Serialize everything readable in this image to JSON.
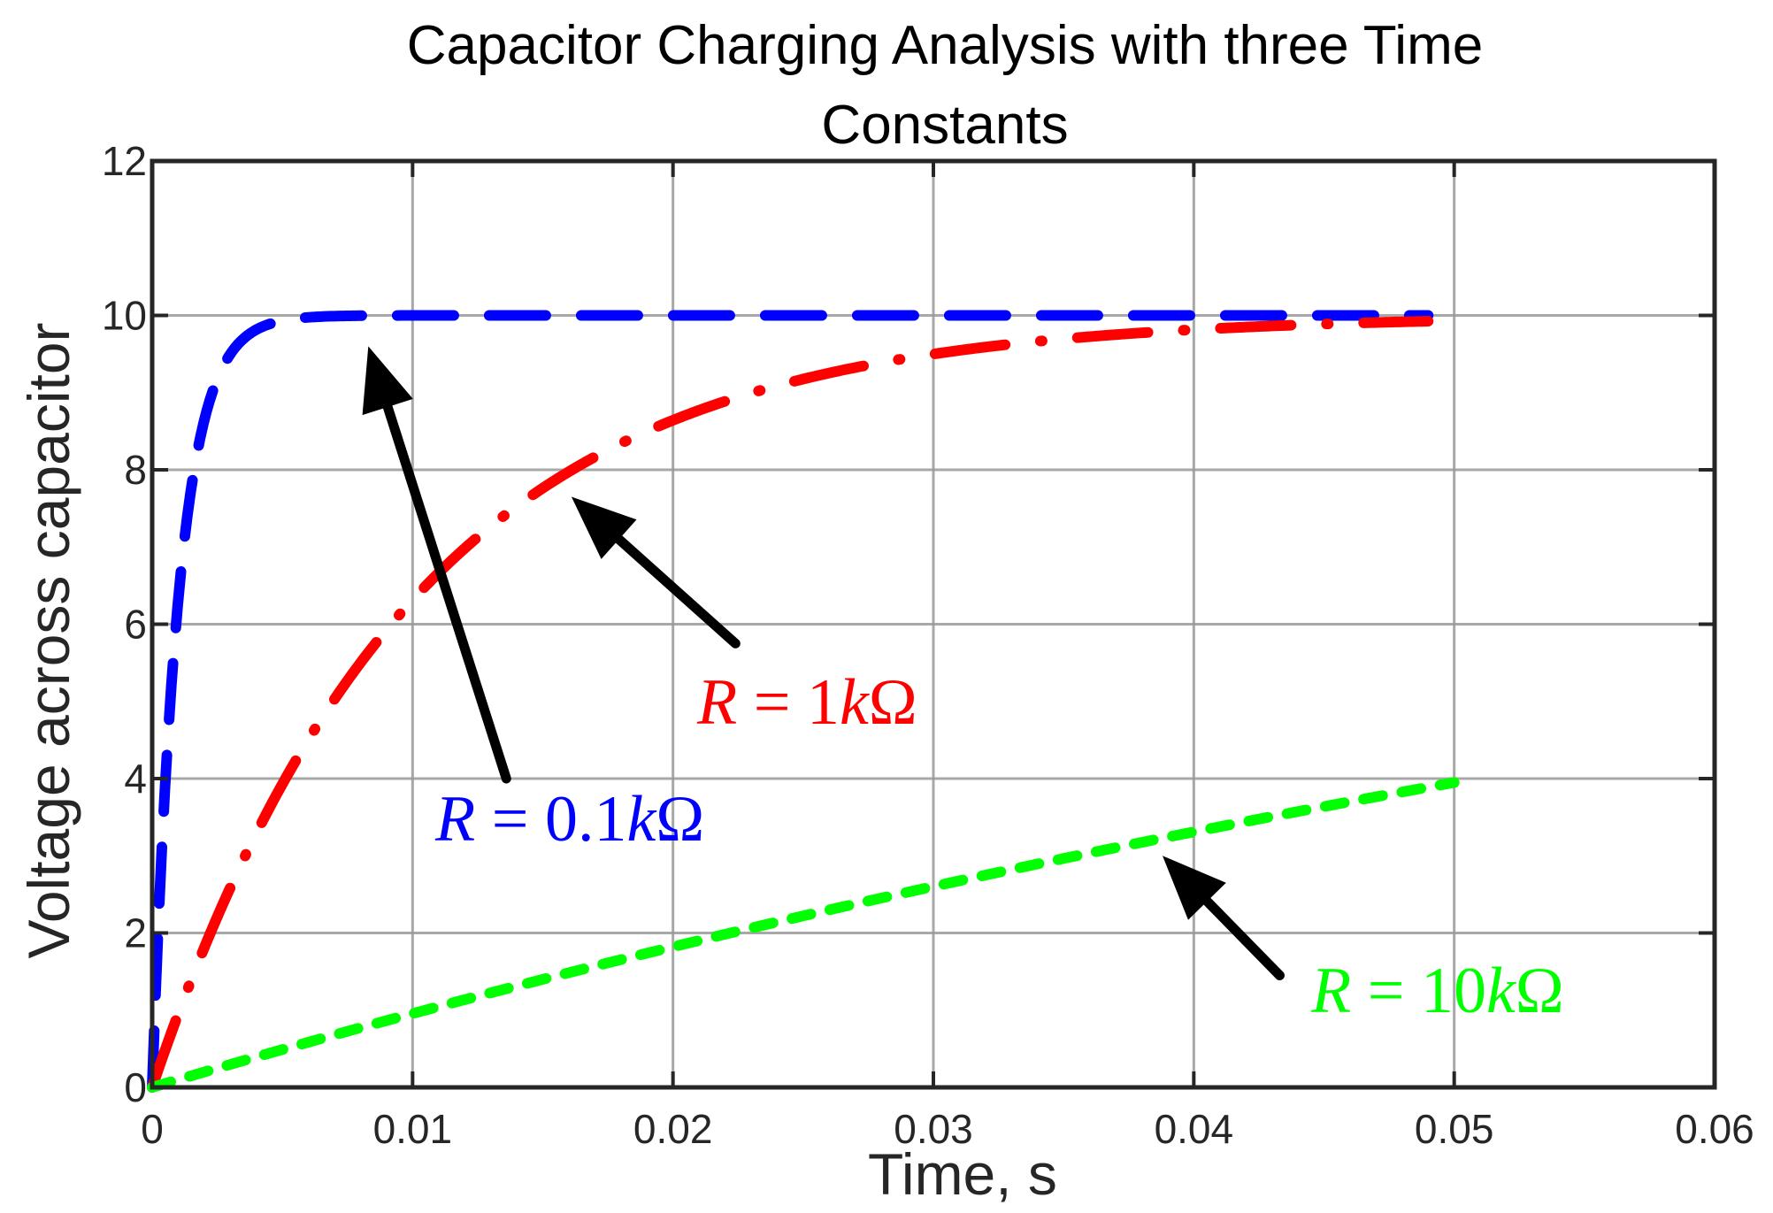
{
  "chart_data": {
    "type": "line",
    "title": "Capacitor Charging Analysis with three Time Constants",
    "title_lines": [
      "Capacitor Charging Analysis with three Time",
      "Constants"
    ],
    "xlabel": "Time, s",
    "ylabel": "Voltage across capacitor",
    "xlim": [
      0,
      0.06
    ],
    "ylim": [
      0,
      12
    ],
    "xticks": [
      0,
      0.01,
      0.02,
      0.03,
      0.04,
      0.05,
      0.06
    ],
    "xtick_labels": [
      "0",
      "0.01",
      "0.02",
      "0.03",
      "0.04",
      "0.05",
      "0.06"
    ],
    "yticks": [
      0,
      2,
      4,
      6,
      8,
      10,
      12
    ],
    "ytick_labels": [
      "0",
      "2",
      "4",
      "6",
      "8",
      "10",
      "12"
    ],
    "grid": true,
    "legend": null,
    "series": [
      {
        "name": "R = 0.1kΩ",
        "color": "#0000ff",
        "style": "dashed",
        "x": [
          0,
          0.0005,
          0.001,
          0.0015,
          0.002,
          0.003,
          0.004,
          0.005,
          0.006,
          0.008,
          0.01,
          0.015,
          0.02,
          0.025,
          0.03,
          0.035,
          0.04,
          0.045,
          0.049
        ],
        "values": [
          0,
          3.93,
          6.32,
          7.77,
          8.65,
          9.5,
          9.82,
          9.93,
          9.98,
          10.0,
          10.0,
          10.0,
          10.0,
          10.0,
          10.0,
          10.0,
          10.0,
          10.0,
          10.0
        ]
      },
      {
        "name": "R = 1kΩ",
        "color": "#ff0000",
        "style": "dash-dot",
        "x": [
          0,
          0.001,
          0.002,
          0.004,
          0.006,
          0.008,
          0.01,
          0.012,
          0.015,
          0.02,
          0.025,
          0.03,
          0.035,
          0.04,
          0.045,
          0.049
        ],
        "values": [
          0,
          0.95,
          1.81,
          3.3,
          4.51,
          5.51,
          6.32,
          6.99,
          7.77,
          8.65,
          9.18,
          9.5,
          9.7,
          9.82,
          9.89,
          9.93
        ]
      },
      {
        "name": "R = 10kΩ",
        "color": "#00ff00",
        "style": "dotted",
        "x": [
          0,
          0.005,
          0.01,
          0.015,
          0.02,
          0.025,
          0.03,
          0.035,
          0.04,
          0.045,
          0.05
        ],
        "values": [
          0,
          0.49,
          0.95,
          1.39,
          1.81,
          2.21,
          2.59,
          2.95,
          3.3,
          3.62,
          3.93
        ]
      }
    ],
    "annotations": [
      {
        "text": "R = 0.1kΩ",
        "color": "#0000ff",
        "arrow_from": [
          0.0136,
          4.0
        ],
        "arrow_to": [
          0.0083,
          9.6
        ]
      },
      {
        "text": "R = 1kΩ",
        "color": "#ff0000",
        "arrow_from": [
          0.0224,
          5.75
        ],
        "arrow_to": [
          0.0161,
          7.65
        ]
      },
      {
        "text": "R = 10kΩ",
        "color": "#00ff00",
        "arrow_from": [
          0.0433,
          1.45
        ],
        "arrow_to": [
          0.0388,
          3.0
        ]
      }
    ]
  },
  "labels": {
    "annot_blue": {
      "R": "R",
      "eq": " = ",
      "num": "0.1",
      "k": "k",
      "omega": "Ω"
    },
    "annot_red": {
      "R": "R",
      "eq": " = ",
      "num": "1",
      "k": "k",
      "omega": "Ω"
    },
    "annot_green": {
      "R": "R",
      "eq": " = ",
      "num": "10",
      "k": "k",
      "omega": "Ω"
    }
  }
}
